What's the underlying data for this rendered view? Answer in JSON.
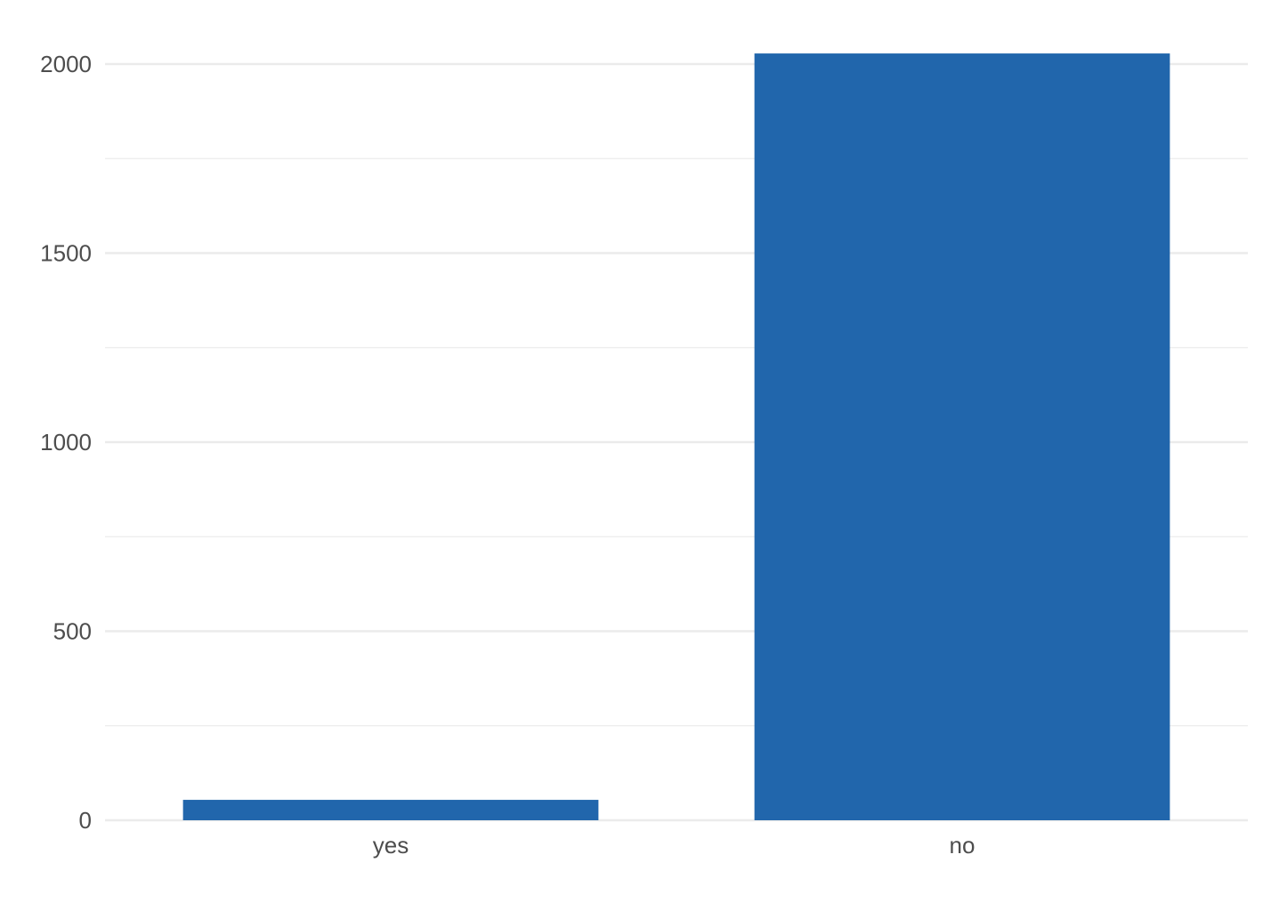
{
  "chart_data": {
    "type": "bar",
    "title": "",
    "xlabel": "",
    "ylabel": "",
    "categories": [
      "yes",
      "no"
    ],
    "values": [
      54,
      2028
    ],
    "ylim": [
      0,
      2100
    ],
    "yticks": [
      0,
      500,
      1000,
      1500,
      2000
    ],
    "ytick_labels": [
      "0",
      "500",
      "1000",
      "1500",
      "2000"
    ],
    "grid": true,
    "bar_color": "#2166AC",
    "grid_color": "#EBEBEB"
  }
}
